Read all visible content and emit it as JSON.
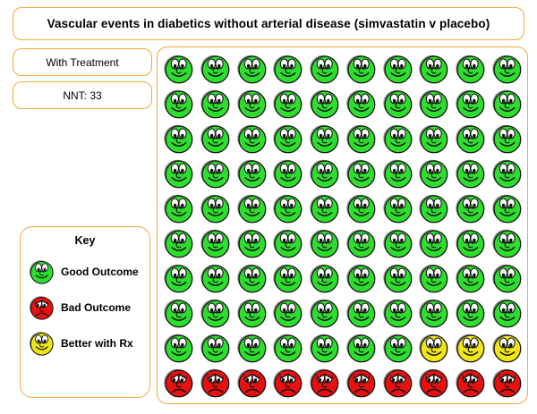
{
  "title": "Vascular events in diabetics without arterial disease (simvastatin v placebo)",
  "labels": {
    "treatment": "With Treatment",
    "nnt": "NNT: 33"
  },
  "key": {
    "title": "Key",
    "items": [
      {
        "type": "good",
        "label": "Good Outcome"
      },
      {
        "type": "bad",
        "label": "Bad Outcome"
      },
      {
        "type": "better",
        "label": "Better with Rx"
      }
    ]
  },
  "colors": {
    "good": "#2ede2e",
    "bad": "#ea1010",
    "better": "#f0e616",
    "border": "#f2a93b",
    "shadow": "#8f8f8f",
    "outline": "#111111"
  },
  "chart_data": {
    "type": "pictograph",
    "title": "Vascular events in diabetics without arterial disease (simvastatin v placebo)",
    "subtitle": "With Treatment",
    "nnt": 33,
    "total_faces": 100,
    "grid_size": {
      "rows": 10,
      "cols": 10
    },
    "counts": {
      "good_outcome": 87,
      "bad_outcome": 10,
      "better_with_rx": 3
    },
    "legend": [
      "Good Outcome",
      "Bad Outcome",
      "Better with Rx"
    ],
    "cell_codes": {
      "G": "good",
      "Y": "better",
      "R": "bad"
    },
    "rows": [
      "GGGGGGGGGG",
      "GGGGGGGGGG",
      "GGGGGGGGGG",
      "GGGGGGGGGG",
      "GGGGGGGGGG",
      "GGGGGGGGGG",
      "GGGGGGGGGG",
      "GGGGGGGGGG",
      "GGGGGGGYYY",
      "RRRRRRRRRR"
    ]
  }
}
